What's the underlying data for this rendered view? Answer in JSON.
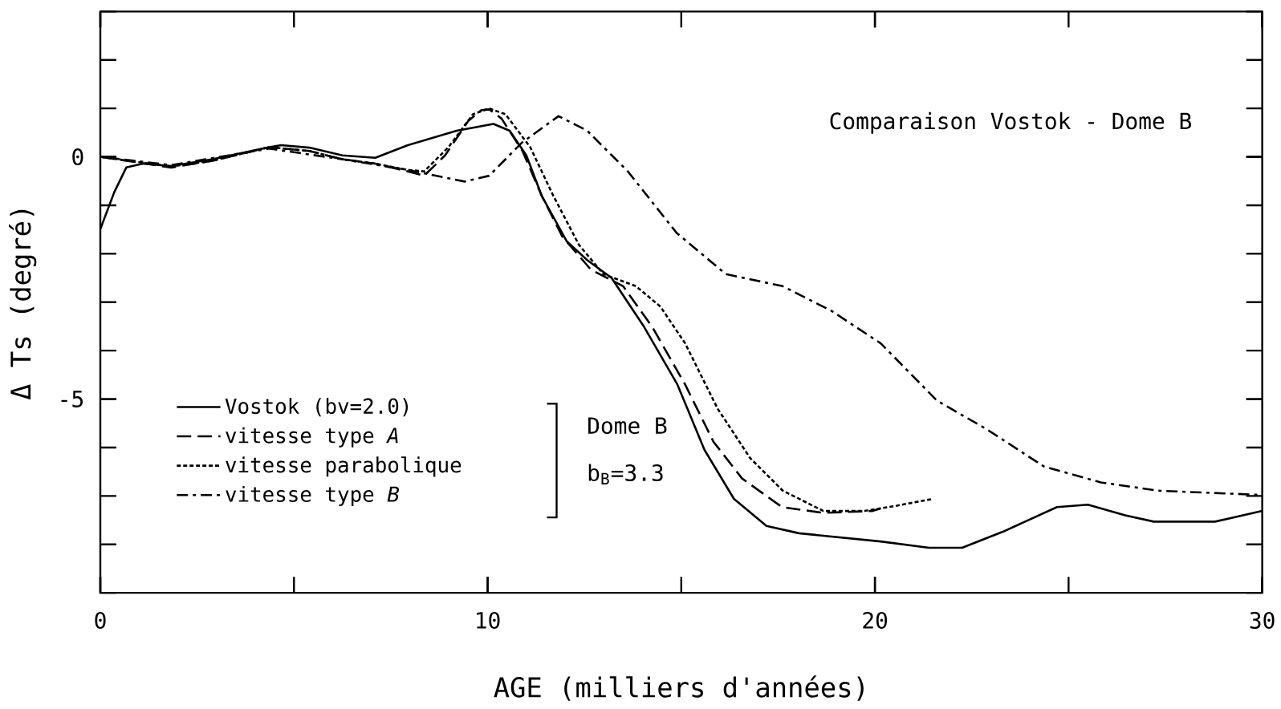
{
  "chart_data": {
    "type": "line",
    "xlabel": "AGE  (milliers d'années)",
    "ylabel": "Δ Ts  (degré)",
    "annotations": [
      "Comparaison Vostok - Dome B",
      "Dome B",
      "b$_{B}$=3.3"
    ],
    "xlim": [
      0,
      30
    ],
    "ylim": [
      -9,
      3
    ],
    "xticks": [
      0,
      10,
      20,
      30
    ],
    "yticks": [
      -5,
      0
    ],
    "grid": false,
    "legend": "left",
    "marker": "none",
    "series": [
      {
        "name": "Vostok  (bv=2.0)",
        "color": "#000000",
        "line_style": "solid",
        "x": [
          0,
          0.36,
          0.67,
          1.1,
          1.83,
          2.9,
          4.36,
          4.67,
          5.4,
          6.25,
          7.1,
          7.94,
          9.2,
          10.15,
          10.57,
          11.0,
          11.4,
          12.04,
          12.57,
          13.2,
          14.04,
          14.9,
          15.6,
          16.36,
          17.2,
          18.04,
          20.15,
          21.4,
          22.25,
          23.3,
          24.7,
          25.5,
          26.46,
          27.2,
          28.78,
          30
        ],
        "values": [
          -1.49,
          -0.73,
          -0.22,
          -0.14,
          -0.19,
          -0.05,
          0.2,
          0.24,
          0.19,
          0.03,
          -0.02,
          0.24,
          0.54,
          0.68,
          0.54,
          0.03,
          -0.81,
          -1.74,
          -2.13,
          -2.5,
          -3.51,
          -4.7,
          -6.05,
          -7.06,
          -7.62,
          -7.77,
          -7.94,
          -8.07,
          -8.07,
          -7.74,
          -7.23,
          -7.18,
          -7.4,
          -7.53,
          -7.53,
          -7.31
        ]
      },
      {
        "name": "vitesse type   *A*",
        "color": "#000000",
        "line_style": "dashed",
        "x": [
          0,
          1.83,
          2.9,
          4.36,
          5.4,
          6.25,
          7.1,
          7.94,
          8.36,
          8.9,
          9.5,
          9.83,
          10.04,
          10.36,
          10.9,
          11.4,
          11.94,
          12.67,
          13.5,
          14.25,
          15.1,
          15.83,
          16.57,
          17.6,
          18.67,
          19.94,
          20.15
        ],
        "values": [
          0,
          -0.22,
          -0.08,
          0.2,
          0.12,
          -0.05,
          -0.14,
          -0.3,
          -0.39,
          0.03,
          0.74,
          0.96,
          0.98,
          0.79,
          0.12,
          -0.81,
          -1.66,
          -2.33,
          -2.67,
          -3.51,
          -4.7,
          -5.88,
          -6.64,
          -7.23,
          -7.35,
          -7.31,
          -7.26
        ]
      },
      {
        "name": "vitesse parabolique",
        "color": "#000000",
        "line_style": "dotted",
        "x": [
          0,
          1.83,
          2.9,
          4.36,
          5.4,
          6.25,
          7.1,
          7.94,
          8.36,
          8.99,
          9.62,
          10.04,
          10.46,
          11.1,
          11.7,
          12.36,
          12.99,
          13.83,
          14.46,
          15.1,
          15.94,
          16.78,
          17.62,
          18.67,
          19.73,
          20.57,
          21.5
        ],
        "values": [
          0,
          -0.2,
          -0.08,
          0.2,
          0.12,
          -0.05,
          -0.14,
          -0.27,
          -0.3,
          0.2,
          0.88,
          1.0,
          0.88,
          0.2,
          -0.81,
          -1.82,
          -2.42,
          -2.67,
          -3.09,
          -3.85,
          -5.2,
          -6.22,
          -6.89,
          -7.31,
          -7.31,
          -7.2,
          -7.06
        ]
      },
      {
        "name": "vitesse type   *B*",
        "color": "#000000",
        "line_style": "dashdot",
        "x": [
          0,
          1.83,
          4.36,
          6.25,
          7.94,
          9.41,
          10.04,
          10.88,
          11.83,
          12.57,
          13.62,
          14.88,
          16.15,
          17.62,
          18.88,
          20.15,
          21.6,
          22.9,
          24.36,
          25.83,
          27.3,
          30
        ],
        "values": [
          0,
          -0.17,
          0.17,
          -0.05,
          -0.27,
          -0.51,
          -0.39,
          0.29,
          0.84,
          0.54,
          -0.3,
          -1.57,
          -2.42,
          -2.67,
          -3.18,
          -3.85,
          -5.03,
          -5.63,
          -6.39,
          -6.72,
          -6.89,
          -6.98
        ]
      }
    ]
  }
}
